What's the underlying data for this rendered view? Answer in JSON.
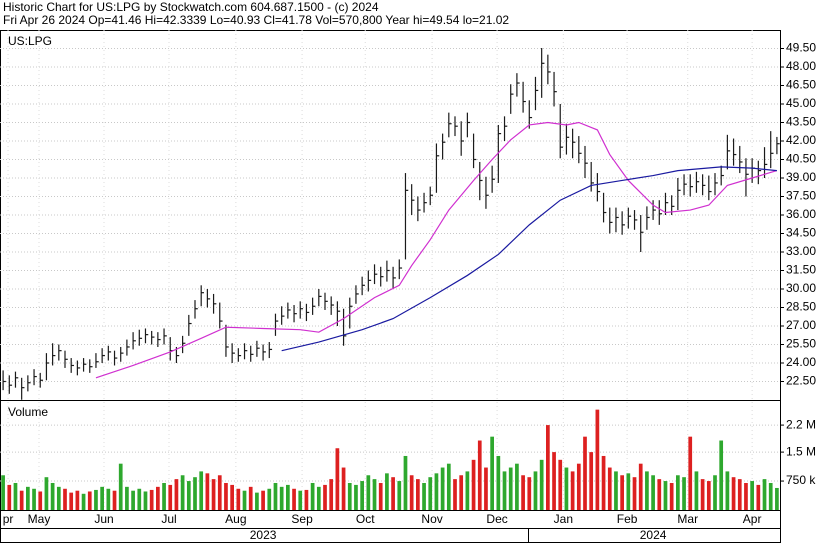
{
  "chart_data": {
    "type": "ohlc",
    "title": "Historic Chart for US:LPG by Stockwatch.com 604.687.1500 - (c) 2024",
    "subtitle": "Fri Apr 26 2024  Op=41.46  Hi=42.3339  Lo=40.93  Cl=41.78  Vol=570,800  Year hi=49.54  lo=21.02",
    "symbol_label": "US:LPG",
    "volume_label": "Volume",
    "bar_color": "#1a1a1a",
    "grid": true,
    "xlim": [
      -0.5,
      125.5
    ],
    "ylim": [
      21,
      51
    ],
    "yticks": [
      {
        "value": 22.5,
        "label": "22.50"
      },
      {
        "value": 24,
        "label": "24.00"
      },
      {
        "value": 25.5,
        "label": "25.50"
      },
      {
        "value": 27,
        "label": "27.00"
      },
      {
        "value": 28.5,
        "label": "28.50"
      },
      {
        "value": 30,
        "label": "30.00"
      },
      {
        "value": 31.5,
        "label": "31.50"
      },
      {
        "value": 33,
        "label": "33.00"
      },
      {
        "value": 34.5,
        "label": "34.50"
      },
      {
        "value": 36,
        "label": "36.00"
      },
      {
        "value": 37.5,
        "label": "37.50"
      },
      {
        "value": 39,
        "label": "39.00"
      },
      {
        "value": 40.5,
        "label": "40.50"
      },
      {
        "value": 42,
        "label": "42.00"
      },
      {
        "value": 43.5,
        "label": "43.50"
      },
      {
        "value": 45,
        "label": "45.00"
      },
      {
        "value": 46.5,
        "label": "46.50"
      },
      {
        "value": 48,
        "label": "48.00"
      },
      {
        "value": 49.5,
        "label": "49.50"
      }
    ],
    "xticks": [
      {
        "value": 0.8,
        "label": "pr"
      },
      {
        "value": 5.8,
        "label": "May"
      },
      {
        "value": 16.3,
        "label": "Jun"
      },
      {
        "value": 26.8,
        "label": "Jul"
      },
      {
        "value": 37.6,
        "label": "Aug"
      },
      {
        "value": 48.3,
        "label": "Sep"
      },
      {
        "value": 58.5,
        "label": "Oct"
      },
      {
        "value": 69.3,
        "label": "Nov"
      },
      {
        "value": 79.8,
        "label": "Dec"
      },
      {
        "value": 90.5,
        "label": "Jan"
      },
      {
        "value": 100.8,
        "label": "Feb"
      },
      {
        "value": 110.6,
        "label": "Mar"
      },
      {
        "value": 121,
        "label": "Apr"
      }
    ],
    "year_ticks": [
      {
        "value": 42,
        "label": "2023"
      },
      {
        "value": 105,
        "label": "2024"
      }
    ],
    "high": [
      23.4,
      23.0,
      23.3,
      22.8,
      23.0,
      23.5,
      23.2,
      24.8,
      25.6,
      25.5,
      25.0,
      24.4,
      24.2,
      24.4,
      24.3,
      24.8,
      25.2,
      25.4,
      25.0,
      25.3,
      25.9,
      26.5,
      26.7,
      26.8,
      26.6,
      26.5,
      26.8,
      26.1,
      25.3,
      26.2,
      27.9,
      29.1,
      30.3,
      30.0,
      29.6,
      28.9,
      27.1,
      25.6,
      25.2,
      25.6,
      25.4,
      25.8,
      25.5,
      25.7,
      28.0,
      28.6,
      28.9,
      28.7,
      29.0,
      28.8,
      29.3,
      30.0,
      29.7,
      29.4,
      29.0,
      28.4,
      29.3,
      30.3,
      31.0,
      31.5,
      32.0,
      31.8,
      32.3,
      31.8,
      32.4,
      39.4,
      38.5,
      37.5,
      37.8,
      38.3,
      41.8,
      42.6,
      44.3,
      44.0,
      43.6,
      44.3,
      42.6,
      40.3,
      39.1,
      40.0,
      43.3,
      44.0,
      46.6,
      47.5,
      46.8,
      45.3,
      47.2,
      49.54,
      49.0,
      47.6,
      45.0,
      43.4,
      43.0,
      42.4,
      41.6,
      40.3,
      39.4,
      37.8,
      36.6,
      36.6,
      36.3,
      36.6,
      36.4,
      36.0,
      36.7,
      37.2,
      37.2,
      37.8,
      37.6,
      39.0,
      39.3,
      39.3,
      39.5,
      39.3,
      39.2,
      39.4,
      40.0,
      42.5,
      42.2,
      41.6,
      40.6,
      40.6,
      40.4,
      41.5,
      42.8,
      42.33
    ],
    "low": [
      21.8,
      21.5,
      22.0,
      21.02,
      21.7,
      22.2,
      22.0,
      22.6,
      23.8,
      24.2,
      23.6,
      23.2,
      23.0,
      23.3,
      23.2,
      23.6,
      24.0,
      24.2,
      23.8,
      24.1,
      24.6,
      25.1,
      25.4,
      25.6,
      25.5,
      25.3,
      25.5,
      24.2,
      24.0,
      24.8,
      26.2,
      27.6,
      28.6,
      28.5,
      28.0,
      26.8,
      24.5,
      24.0,
      24.1,
      24.3,
      24.1,
      24.5,
      24.2,
      24.4,
      26.2,
      27.1,
      27.6,
      27.3,
      27.6,
      27.4,
      27.9,
      28.6,
      28.3,
      27.9,
      27.0,
      25.4,
      26.8,
      28.8,
      29.5,
      29.8,
      30.4,
      30.2,
      30.6,
      30.0,
      30.8,
      32.4,
      36.0,
      35.5,
      36.2,
      36.8,
      37.8,
      40.5,
      42.3,
      42.4,
      40.8,
      42.3,
      39.8,
      37.2,
      36.5,
      37.8,
      38.6,
      42.0,
      44.2,
      45.6,
      44.3,
      43.0,
      44.5,
      45.5,
      46.6,
      44.8,
      40.6,
      40.9,
      40.6,
      40.2,
      39.0,
      37.9,
      37.1,
      35.4,
      34.5,
      34.6,
      34.4,
      34.9,
      34.8,
      33.0,
      34.8,
      35.6,
      35.2,
      36.0,
      36.0,
      36.4,
      37.6,
      37.5,
      37.8,
      37.6,
      37.2,
      37.6,
      38.4,
      39.7,
      40.0,
      39.4,
      37.5,
      38.6,
      38.5,
      39.0,
      39.8,
      40.93
    ],
    "close": [
      22.5,
      22.2,
      22.8,
      22.0,
      22.4,
      22.9,
      22.6,
      24.0,
      24.6,
      25.0,
      24.3,
      23.8,
      23.6,
      23.9,
      23.7,
      24.1,
      24.6,
      24.9,
      24.4,
      24.8,
      25.3,
      25.8,
      26.0,
      26.3,
      26.1,
      25.9,
      26.2,
      25.0,
      24.6,
      25.6,
      27.2,
      28.4,
      29.7,
      29.2,
      28.8,
      27.4,
      25.3,
      24.8,
      24.6,
      25.0,
      24.7,
      25.2,
      24.9,
      25.1,
      27.4,
      27.8,
      28.3,
      28.0,
      28.4,
      28.1,
      28.6,
      29.4,
      29.0,
      28.7,
      28.2,
      26.2,
      28.6,
      29.6,
      30.3,
      30.7,
      31.2,
      31.0,
      31.5,
      30.9,
      31.7,
      38.0,
      37.2,
      36.4,
      37.0,
      37.6,
      40.8,
      41.9,
      43.4,
      43.2,
      42.0,
      43.5,
      40.5,
      38.8,
      37.6,
      38.9,
      42.6,
      43.2,
      45.8,
      46.7,
      45.2,
      43.9,
      46.1,
      48.3,
      47.6,
      46.0,
      41.5,
      42.3,
      41.9,
      41.0,
      40.2,
      38.6,
      37.9,
      36.2,
      35.4,
      35.8,
      35.2,
      35.9,
      35.6,
      34.6,
      35.8,
      36.4,
      36.1,
      37.0,
      36.7,
      38.0,
      38.5,
      38.3,
      38.7,
      38.4,
      37.9,
      38.6,
      39.2,
      41.2,
      40.9,
      40.3,
      39.3,
      39.8,
      39.6,
      40.1,
      41.0,
      41.78
    ],
    "volume": [
      900000,
      650000,
      700000,
      500000,
      600000,
      550000,
      480000,
      850000,
      700000,
      600000,
      550000,
      450000,
      500000,
      420000,
      480000,
      520000,
      600000,
      550000,
      500000,
      1200000,
      600000,
      500000,
      550000,
      480000,
      520000,
      600000,
      700000,
      650000,
      800000,
      900000,
      750000,
      850000,
      1000000,
      950000,
      800000,
      900000,
      700000,
      650000,
      550000,
      500000,
      600000,
      450000,
      500000,
      550000,
      700000,
      600000,
      650000,
      550000,
      500000,
      520000,
      700000,
      600000,
      650000,
      800000,
      1600000,
      1100000,
      700000,
      650000,
      750000,
      900000,
      800000,
      700000,
      950000,
      850000,
      750000,
      1400000,
      900000,
      800000,
      700000,
      850000,
      950000,
      1100000,
      1200000,
      800000,
      900000,
      1000000,
      1300000,
      1800000,
      1100000,
      1900000,
      1400000,
      1000000,
      1100000,
      1200000,
      900000,
      850000,
      1000000,
      1300000,
      2200000,
      1500000,
      1300000,
      1100000,
      1000000,
      1200000,
      1900000,
      1500000,
      2600000,
      1400000,
      1100000,
      1000000,
      900000,
      950000,
      850000,
      1200000,
      1000000,
      900000,
      800000,
      750000,
      700000,
      900000,
      850000,
      1900000,
      1000000,
      800000,
      750000,
      900000,
      1800000,
      1000000,
      850000,
      800000,
      700000,
      750000,
      650000,
      800000,
      700000,
      570800
    ],
    "volume_ylim": [
      0,
      2850000
    ],
    "volume_yticks": [
      {
        "value": 750000,
        "label": "750 k"
      },
      {
        "value": 1500000,
        "label": "1.5 M"
      },
      {
        "value": 2200000,
        "label": "2.2 M"
      }
    ],
    "up_color": "#2ea82e",
    "down_color": "#dd2020",
    "moving_averages": [
      {
        "color": "#d030d0",
        "x": [
          15,
          21,
          27,
          32,
          36,
          42,
          48,
          51,
          55,
          60,
          64,
          66,
          69,
          72,
          76,
          79,
          82,
          85,
          88,
          91,
          93,
          96,
          98,
          101,
          105,
          107,
          111,
          114,
          117,
          121,
          125
        ],
        "values": [
          22.8,
          23.8,
          24.9,
          26.0,
          26.9,
          26.8,
          26.7,
          26.5,
          27.6,
          29.3,
          30.3,
          31.9,
          34.0,
          36.4,
          38.8,
          40.5,
          42.1,
          43.3,
          43.5,
          43.3,
          43.5,
          42.9,
          40.9,
          38.8,
          36.8,
          36.2,
          36.4,
          36.8,
          38.4,
          39.0,
          39.6
        ]
      },
      {
        "color": "#1a1aa0",
        "x": [
          45,
          51,
          58,
          63,
          69,
          75,
          80,
          85,
          90,
          95,
          100,
          105,
          109,
          116,
          121,
          125
        ],
        "values": [
          25.0,
          25.7,
          26.7,
          27.6,
          29.3,
          31.1,
          32.8,
          35.2,
          37.2,
          38.4,
          38.8,
          39.2,
          39.6,
          39.9,
          39.8,
          39.6
        ]
      }
    ]
  }
}
